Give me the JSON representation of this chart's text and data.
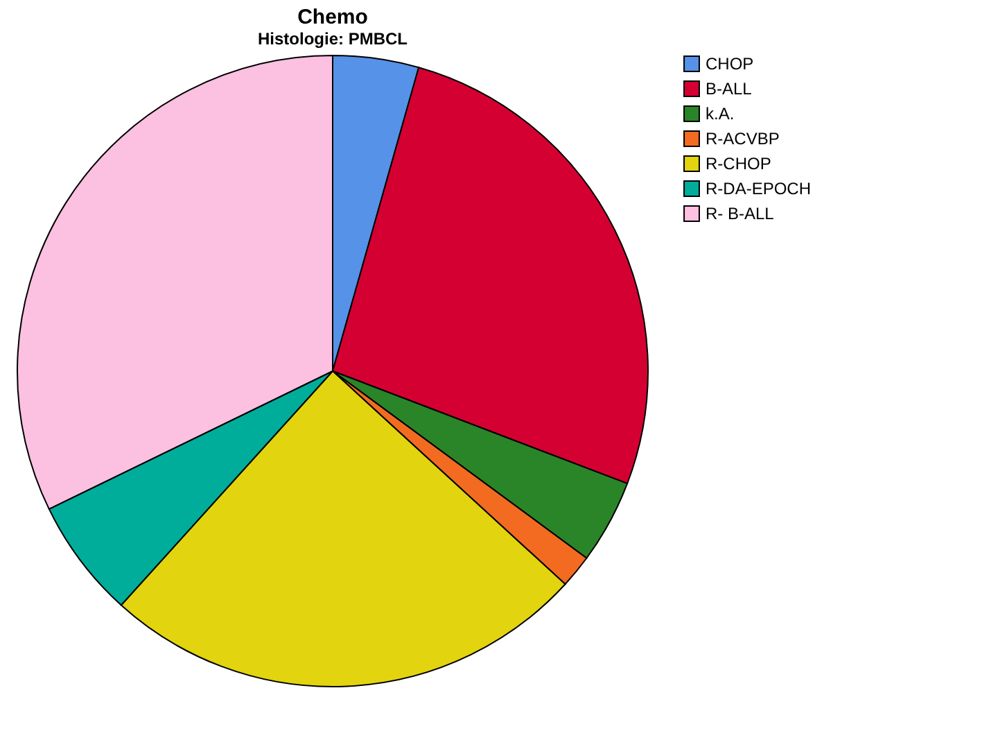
{
  "chart_data": {
    "type": "pie",
    "title": "Chemo",
    "subtitle": "Histologie: PMBCL",
    "categories": [
      "CHOP",
      "B-ALL",
      "k.A.",
      "R-ACVBP",
      "R-CHOP",
      "R-DA-EPOCH",
      "R- B-ALL"
    ],
    "values": [
      4.4,
      26.4,
      4.3,
      1.7,
      24.9,
      6.1,
      32.2
    ],
    "colors": [
      "#5592e8",
      "#d50032",
      "#2a8528",
      "#f26b21",
      "#e2d40e",
      "#00ad9a",
      "#fcc0e0"
    ],
    "legend": "top right"
  }
}
